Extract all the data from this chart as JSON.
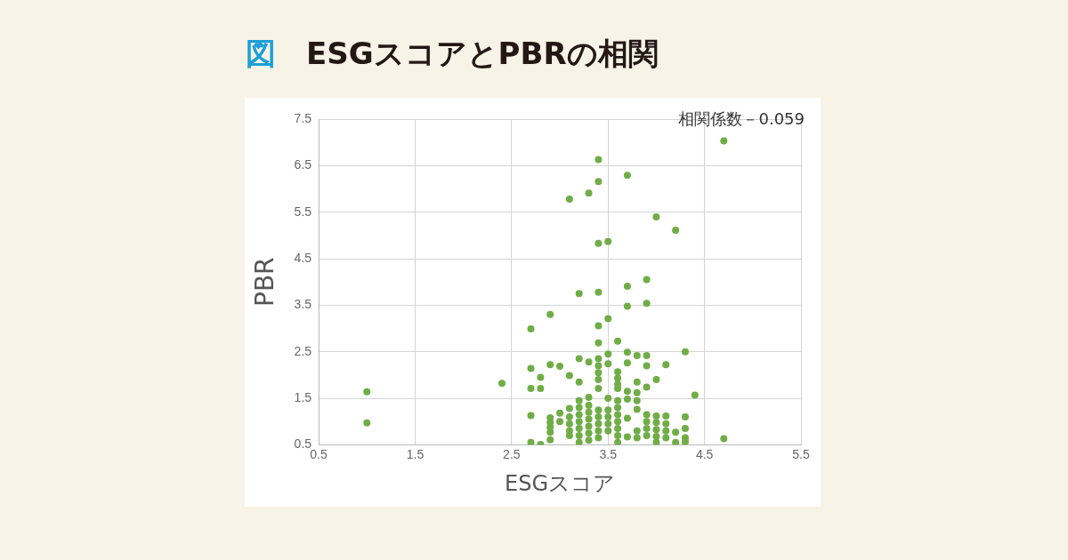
{
  "chart_data": {
    "type": "scatter",
    "title": "図　ESGスコアとPBRの相関",
    "xlabel": "ESGスコア",
    "ylabel": "PBR",
    "annotations": [
      "相関係数－0.059"
    ],
    "xlim": [
      0.5,
      5.5
    ],
    "xticks": [
      0.5,
      1.5,
      2.5,
      3.5,
      4.5,
      5.5
    ],
    "ylim": [
      0.5,
      7.5
    ],
    "yticks": [
      0.5,
      1.5,
      2.5,
      3.5,
      4.5,
      5.5,
      6.5,
      7.5
    ],
    "grid": true,
    "legend": false,
    "marker": "circle",
    "series": [
      {
        "color": "#70ad47",
        "x": [
          1.0,
          1.0,
          2.4,
          4.4,
          4.7,
          4.3,
          4.7,
          3.4,
          3.7,
          3.4,
          3.3,
          3.1,
          4.0,
          4.2,
          3.4,
          3.5,
          3.9,
          3.7,
          3.2,
          3.4,
          3.7,
          3.9,
          2.9,
          3.5,
          3.4,
          2.7,
          3.4,
          3.5,
          3.2,
          3.3,
          3.4,
          3.4,
          3.4,
          3.4,
          2.7,
          2.9,
          3.0,
          3.5,
          3.1,
          2.8,
          3.2,
          2.7,
          2.8,
          3.4,
          2.7,
          2.7,
          2.8,
          2.9,
          2.9,
          2.9,
          2.9,
          2.9,
          3.0,
          3.0,
          3.1,
          3.1,
          3.1,
          3.1,
          3.1,
          3.2,
          3.2,
          3.2,
          3.2,
          3.2,
          3.2,
          3.2,
          3.3,
          3.3,
          3.3,
          3.3,
          3.3,
          3.3,
          3.3,
          3.4,
          3.4,
          3.4,
          3.4,
          3.4,
          3.5,
          3.6,
          3.7,
          3.8,
          3.9,
          3.7,
          3.9,
          4.1,
          3.6,
          3.6,
          3.6,
          3.6,
          3.8,
          4.0,
          3.9,
          3.7,
          3.7,
          3.8,
          3.8,
          3.8,
          3.5,
          3.5,
          3.5,
          3.5,
          3.6,
          3.6,
          3.6,
          3.6,
          3.6,
          3.6,
          3.6,
          3.7,
          3.7,
          3.8,
          3.8,
          3.9,
          3.9,
          3.9,
          3.9,
          4.0,
          4.0,
          4.0,
          4.0,
          4.0,
          4.1,
          4.1,
          4.1,
          4.1,
          4.2,
          4.2,
          4.3,
          4.3,
          4.3,
          4.3
        ],
        "values": [
          1.64,
          0.97,
          1.82,
          1.57,
          0.63,
          2.5,
          7.03,
          6.63,
          6.29,
          6.16,
          5.91,
          5.78,
          5.4,
          5.11,
          4.83,
          4.87,
          4.05,
          3.91,
          3.75,
          3.78,
          3.48,
          3.54,
          3.3,
          3.21,
          3.06,
          2.99,
          2.69,
          2.45,
          2.35,
          2.28,
          2.35,
          2.2,
          2.05,
          1.9,
          2.14,
          2.22,
          2.19,
          2.24,
          1.99,
          1.95,
          1.85,
          1.71,
          1.71,
          1.71,
          1.13,
          0.55,
          0.51,
          0.61,
          0.77,
          0.88,
          0.98,
          1.08,
          1.18,
          1.0,
          1.28,
          1.1,
          0.95,
          0.8,
          0.7,
          1.45,
          1.3,
          1.15,
          1.0,
          0.85,
          0.7,
          0.55,
          1.52,
          1.35,
          1.2,
          1.05,
          0.9,
          0.75,
          0.6,
          1.25,
          1.1,
          0.95,
          0.8,
          0.65,
          1.5,
          2.73,
          2.49,
          2.42,
          2.42,
          2.26,
          2.2,
          2.22,
          2.07,
          1.93,
          1.8,
          1.71,
          1.85,
          1.9,
          1.74,
          1.65,
          1.48,
          1.62,
          1.45,
          1.26,
          1.25,
          1.1,
          0.95,
          0.8,
          1.45,
          1.3,
          1.15,
          1.0,
          0.85,
          0.7,
          0.55,
          1.07,
          0.67,
          0.8,
          0.65,
          1.15,
          1.0,
          0.85,
          0.7,
          1.12,
          0.98,
          0.83,
          0.68,
          0.55,
          1.12,
          0.95,
          0.8,
          0.65,
          0.77,
          0.55,
          1.1,
          0.85,
          0.65,
          0.56
        ]
      }
    ]
  }
}
